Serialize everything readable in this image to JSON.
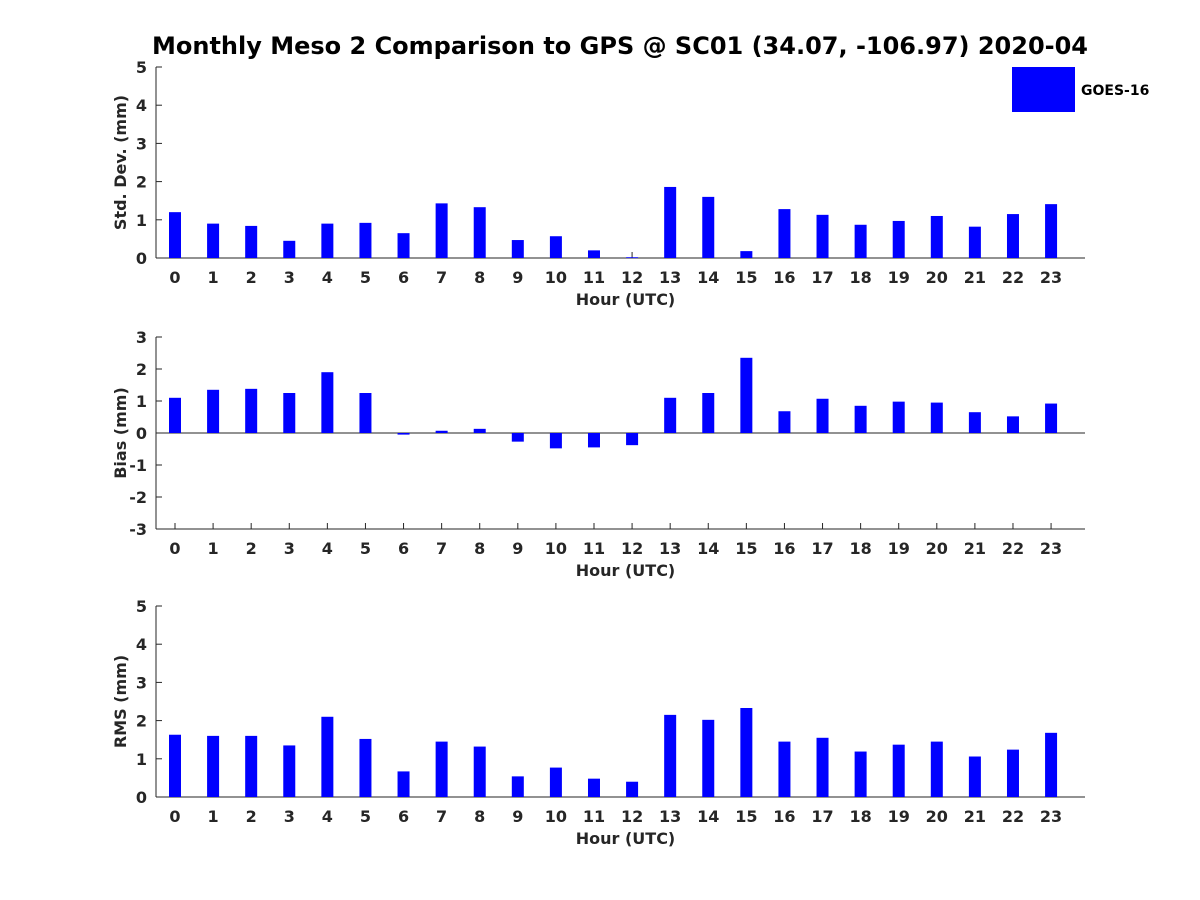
{
  "title": "Monthly Meso 2 Comparison to GPS @ SC01 (34.07, -106.97) 2020-04",
  "colors": {
    "bar": "#0000ff",
    "axis": "#262626",
    "background": "#ffffff"
  },
  "legend": {
    "label": "GOES-16",
    "placement": "top-right"
  },
  "chart_data": [
    {
      "type": "bar",
      "name": "std_dev",
      "xlabel": "Hour (UTC)",
      "ylabel": "Std. Dev. (mm)",
      "ylim": [
        0,
        5
      ],
      "yticks": [
        0,
        1,
        2,
        3,
        4,
        5
      ],
      "categories": [
        "0",
        "1",
        "2",
        "3",
        "4",
        "5",
        "6",
        "7",
        "8",
        "9",
        "10",
        "11",
        "12",
        "13",
        "14",
        "15",
        "16",
        "17",
        "18",
        "19",
        "20",
        "21",
        "22",
        "23"
      ],
      "series": [
        {
          "name": "GOES-16",
          "values": [
            1.2,
            0.9,
            0.84,
            0.45,
            0.9,
            0.92,
            0.65,
            1.43,
            1.33,
            0.47,
            0.57,
            0.2,
            0.02,
            1.86,
            1.6,
            0.18,
            1.28,
            1.13,
            0.87,
            0.97,
            1.1,
            0.82,
            1.15,
            1.41
          ]
        }
      ],
      "grid": false
    },
    {
      "type": "bar",
      "name": "bias",
      "xlabel": "Hour (UTC)",
      "ylabel": "Bias (mm)",
      "ylim": [
        -3,
        3
      ],
      "yticks": [
        -3,
        -2,
        -1,
        0,
        1,
        2,
        3
      ],
      "categories": [
        "0",
        "1",
        "2",
        "3",
        "4",
        "5",
        "6",
        "7",
        "8",
        "9",
        "10",
        "11",
        "12",
        "13",
        "14",
        "15",
        "16",
        "17",
        "18",
        "19",
        "20",
        "21",
        "22",
        "23"
      ],
      "series": [
        {
          "name": "GOES-16",
          "values": [
            1.1,
            1.35,
            1.38,
            1.25,
            1.9,
            1.25,
            -0.05,
            0.07,
            0.13,
            -0.27,
            -0.48,
            -0.45,
            -0.38,
            1.1,
            1.25,
            2.35,
            0.68,
            1.07,
            0.85,
            0.98,
            0.95,
            0.65,
            0.52,
            0.92
          ]
        }
      ],
      "grid": false
    },
    {
      "type": "bar",
      "name": "rms",
      "xlabel": "Hour (UTC)",
      "ylabel": "RMS (mm)",
      "ylim": [
        0,
        5
      ],
      "yticks": [
        0,
        1,
        2,
        3,
        4,
        5
      ],
      "categories": [
        "0",
        "1",
        "2",
        "3",
        "4",
        "5",
        "6",
        "7",
        "8",
        "9",
        "10",
        "11",
        "12",
        "13",
        "14",
        "15",
        "16",
        "17",
        "18",
        "19",
        "20",
        "21",
        "22",
        "23"
      ],
      "series": [
        {
          "name": "GOES-16",
          "values": [
            1.63,
            1.6,
            1.6,
            1.35,
            2.1,
            1.52,
            0.67,
            1.45,
            1.32,
            0.54,
            0.77,
            0.48,
            0.4,
            2.15,
            2.02,
            2.33,
            1.45,
            1.55,
            1.19,
            1.37,
            1.45,
            1.06,
            1.24,
            1.68
          ]
        }
      ],
      "grid": false
    }
  ]
}
